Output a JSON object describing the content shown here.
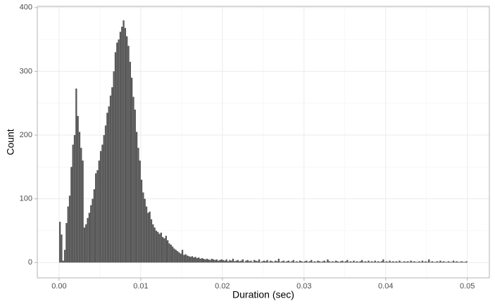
{
  "chart_data": {
    "type": "histogram",
    "xlabel": "Duration (sec)",
    "ylabel": "Count",
    "color": "#595959",
    "grid": true,
    "xlim": [
      -0.00267,
      0.0527
    ],
    "ylim": [
      -24,
      402
    ],
    "xticks": [
      {
        "value": 0,
        "label": "0.00"
      },
      {
        "value": 0.01,
        "label": "0.01"
      },
      {
        "value": 0.02,
        "label": "0.02"
      },
      {
        "value": 0.03,
        "label": "0.03"
      },
      {
        "value": 0.04,
        "label": "0.04"
      },
      {
        "value": 0.05,
        "label": "0.05"
      }
    ],
    "yticks": [
      0,
      100,
      200,
      300,
      400
    ],
    "bins": [
      0,
      0.0002,
      0.0004,
      0.0006,
      0.0008,
      0.001,
      0.0012,
      0.0014,
      0.0016,
      0.0018,
      0.002,
      0.0022,
      0.0024,
      0.0026,
      0.0028,
      0.003,
      0.0032,
      0.0034,
      0.0036,
      0.0038,
      0.004,
      0.0042,
      0.0044,
      0.0046,
      0.0048,
      0.005,
      0.0052,
      0.0054,
      0.0056,
      0.0058,
      0.006,
      0.0062,
      0.0064,
      0.0066,
      0.0068,
      0.007,
      0.0072,
      0.0074,
      0.0076,
      0.0078,
      0.008,
      0.0082,
      0.0084,
      0.0086,
      0.0088,
      0.009,
      0.0092,
      0.0094,
      0.0096,
      0.0098,
      0.01,
      0.0102,
      0.0104,
      0.0106,
      0.0108,
      0.011,
      0.0112,
      0.0114,
      0.0116,
      0.0118,
      0.012,
      0.0122,
      0.0124,
      0.0126,
      0.0128,
      0.013,
      0.0132,
      0.0134,
      0.0136,
      0.0138,
      0.014,
      0.0142,
      0.0144,
      0.0146,
      0.0148,
      0.015,
      0.0152,
      0.0154,
      0.0156,
      0.0158,
      0.016,
      0.0162,
      0.0164,
      0.0166,
      0.0168,
      0.017,
      0.0172,
      0.0174,
      0.0176,
      0.0178,
      0.018,
      0.0182,
      0.0184,
      0.0186,
      0.0188,
      0.019,
      0.0192,
      0.0194,
      0.0196,
      0.0198,
      0.02,
      0.0202,
      0.0204,
      0.0206,
      0.0208,
      0.021,
      0.0212,
      0.0214,
      0.0216,
      0.0218,
      0.022,
      0.0222,
      0.0224,
      0.0226,
      0.0228,
      0.023,
      0.0232,
      0.0234,
      0.0236,
      0.0238,
      0.024,
      0.0242,
      0.0244,
      0.0246,
      0.0248,
      0.025,
      0.0252,
      0.0254,
      0.0256,
      0.0258,
      0.026,
      0.0262,
      0.0264,
      0.0266,
      0.0268,
      0.027,
      0.0272,
      0.0274,
      0.0276,
      0.0278,
      0.028,
      0.0282,
      0.0284,
      0.0286,
      0.0288,
      0.029,
      0.0292,
      0.0294,
      0.0296,
      0.0298,
      0.03,
      0.0302,
      0.0304,
      0.0306,
      0.0308,
      0.031,
      0.0312,
      0.0314,
      0.0316,
      0.0318,
      0.032,
      0.0322,
      0.0324,
      0.0326,
      0.0328,
      0.033,
      0.0332,
      0.0334,
      0.0336,
      0.0338,
      0.034,
      0.0342,
      0.0344,
      0.0346,
      0.0348,
      0.035,
      0.0352,
      0.0354,
      0.0356,
      0.0358,
      0.036,
      0.0362,
      0.0364,
      0.0366,
      0.0368,
      0.037,
      0.0372,
      0.0374,
      0.0376,
      0.0378,
      0.038,
      0.0382,
      0.0384,
      0.0386,
      0.0388,
      0.039,
      0.0392,
      0.0394,
      0.0396,
      0.0398,
      0.04,
      0.0402,
      0.0404,
      0.0406,
      0.0408,
      0.041,
      0.0412,
      0.0414,
      0.0416,
      0.0418,
      0.042,
      0.0422,
      0.0424,
      0.0426,
      0.0428,
      0.043,
      0.0432,
      0.0434,
      0.0436,
      0.0438,
      0.044,
      0.0442,
      0.0444,
      0.0446,
      0.0448,
      0.045,
      0.0452,
      0.0454,
      0.0456,
      0.0458,
      0.046,
      0.0462,
      0.0464,
      0.0466,
      0.0468,
      0.047,
      0.0472,
      0.0474,
      0.0476,
      0.0478,
      0.048,
      0.0482,
      0.0484,
      0.0486,
      0.0488,
      0.049,
      0.0492,
      0.0494,
      0.0496,
      0.0498,
      0.05
    ],
    "values": [
      64,
      44,
      3,
      20,
      62,
      88,
      105,
      150,
      185,
      200,
      273,
      230,
      205,
      180,
      160,
      55,
      60,
      70,
      78,
      90,
      100,
      115,
      140,
      145,
      160,
      175,
      185,
      200,
      215,
      235,
      245,
      262,
      275,
      300,
      330,
      345,
      350,
      362,
      370,
      380,
      368,
      355,
      340,
      315,
      290,
      260,
      240,
      205,
      180,
      160,
      130,
      110,
      100,
      88,
      78,
      80,
      68,
      60,
      55,
      50,
      48,
      45,
      47,
      40,
      38,
      42,
      35,
      30,
      28,
      25,
      22,
      20,
      18,
      16,
      14,
      20,
      12,
      13,
      11,
      10,
      9,
      10,
      8,
      9,
      7,
      8,
      6,
      7,
      6,
      5,
      6,
      5,
      4,
      6,
      5,
      4,
      5,
      3,
      4,
      5,
      4,
      3,
      5,
      2,
      4,
      3,
      6,
      2,
      3,
      4,
      2,
      3,
      5,
      1,
      3,
      4,
      2,
      3,
      1,
      4,
      3,
      2,
      5,
      1,
      2,
      3,
      2,
      4,
      1,
      3,
      2,
      1,
      3,
      2,
      6,
      1,
      2,
      3,
      1,
      2,
      3,
      1,
      2,
      4,
      1,
      2,
      1,
      3,
      2,
      1,
      2,
      3,
      1,
      2,
      4,
      1,
      2,
      1,
      3,
      2,
      1,
      2,
      3,
      1,
      5,
      2,
      1,
      2,
      1,
      3,
      2,
      1,
      2,
      3,
      1,
      2,
      4,
      1,
      2,
      1,
      3,
      1,
      2,
      1,
      2,
      4,
      1,
      2,
      1,
      3,
      1,
      2,
      1,
      3,
      1,
      2,
      1,
      2,
      5,
      1,
      2,
      1,
      3,
      1,
      2,
      1,
      2,
      1,
      3,
      1,
      1,
      2,
      1,
      2,
      1,
      3,
      1,
      2,
      1,
      1,
      2,
      1,
      3,
      1,
      2,
      1,
      5,
      1,
      2,
      1,
      1,
      2,
      1,
      3,
      1,
      2,
      1,
      1,
      2,
      1,
      1,
      3,
      1,
      2,
      1,
      1,
      2,
      1,
      1,
      2
    ]
  }
}
